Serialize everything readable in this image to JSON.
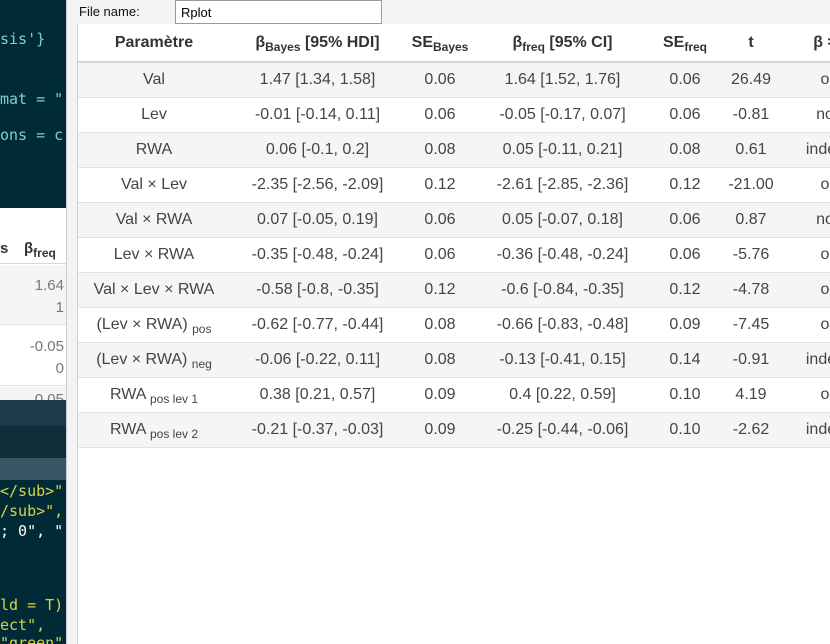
{
  "editor": {
    "code_lines": [
      {
        "text": "sis'}",
        "cls": "c-str"
      },
      {
        "text": "mat = \"",
        "cls": "c-str"
      },
      {
        "text": "ons = c",
        "cls": "c-str"
      },
      {
        "text": "</sub>\"",
        "cls": "c-yel"
      },
      {
        "text": "/sub>\",",
        "cls": "c-yel"
      },
      {
        "text": "; 0\", \"",
        "cls": "c-white"
      },
      {
        "text": "ld = T)",
        "cls": "c-yel"
      },
      {
        "text": "ect\",",
        "cls": "c-yel"
      },
      {
        "text": "\"green\"",
        "cls": "c-yel"
      }
    ],
    "table_headers": [
      "s",
      "β",
      "freq"
    ],
    "table_values": [
      [
        "1.64",
        "1"
      ],
      [
        "-0.05",
        "0"
      ],
      [
        "0.05"
      ]
    ]
  },
  "dialog": {
    "file_label": "File name:",
    "file_value": "Rplot"
  },
  "table": {
    "headers": [
      {
        "main": "Paramètre",
        "sub": "",
        "after": ""
      },
      {
        "main": "β",
        "sub": "Bayes",
        "after": " [95% HDI]"
      },
      {
        "main": "SE",
        "sub": "Bayes",
        "after": ""
      },
      {
        "main": "β",
        "sub": "freq",
        "after": " [95% CI]"
      },
      {
        "main": "SE",
        "sub": "freq",
        "after": ""
      },
      {
        "main": "t",
        "sub": "",
        "after": ""
      },
      {
        "main": "β =",
        "sub": "",
        "after": ""
      }
    ],
    "rows": [
      {
        "param": "Val",
        "param_sub": "",
        "bayes": "1.47 [1.34, 1.58]",
        "se_bayes": "0.06",
        "freq": "1.64 [1.52, 1.76]",
        "se_freq": "0.06",
        "t": "26.49",
        "last": "o"
      },
      {
        "param": "Lev",
        "param_sub": "",
        "bayes": "-0.01 [-0.14, 0.11]",
        "se_bayes": "0.06",
        "freq": "-0.05 [-0.17, 0.07]",
        "se_freq": "0.06",
        "t": "-0.81",
        "last": "no"
      },
      {
        "param": "RWA",
        "param_sub": "",
        "bayes": "0.06 [-0.1, 0.2]",
        "se_bayes": "0.08",
        "freq": "0.05 [-0.11, 0.21]",
        "se_freq": "0.08",
        "t": "0.61",
        "last": "indéc"
      },
      {
        "param": "Val × Lev",
        "param_sub": "",
        "bayes": "-2.35 [-2.56, -2.09]",
        "se_bayes": "0.12",
        "freq": "-2.61 [-2.85, -2.36]",
        "se_freq": "0.12",
        "t": "-21.00",
        "last": "o"
      },
      {
        "param": "Val × RWA",
        "param_sub": "",
        "bayes": "0.07 [-0.05, 0.19]",
        "se_bayes": "0.06",
        "freq": "0.05 [-0.07, 0.18]",
        "se_freq": "0.06",
        "t": "0.87",
        "last": "no"
      },
      {
        "param": "Lev × RWA",
        "param_sub": "",
        "bayes": "-0.35 [-0.48, -0.24]",
        "se_bayes": "0.06",
        "freq": "-0.36 [-0.48, -0.24]",
        "se_freq": "0.06",
        "t": "-5.76",
        "last": "o"
      },
      {
        "param": "Val × Lev × RWA",
        "param_sub": "",
        "bayes": "-0.58 [-0.8, -0.35]",
        "se_bayes": "0.12",
        "freq": "-0.6 [-0.84, -0.35]",
        "se_freq": "0.12",
        "t": "-4.78",
        "last": "o"
      },
      {
        "param": "(Lev × RWA)",
        "param_sub": "pos",
        "bayes": "-0.62 [-0.77, -0.44]",
        "se_bayes": "0.08",
        "freq": "-0.66 [-0.83, -0.48]",
        "se_freq": "0.09",
        "t": "-7.45",
        "last": "o"
      },
      {
        "param": "(Lev × RWA)",
        "param_sub": "neg",
        "bayes": "-0.06 [-0.22, 0.11]",
        "se_bayes": "0.08",
        "freq": "-0.13 [-0.41, 0.15]",
        "se_freq": "0.14",
        "t": "-0.91",
        "last": "indéc"
      },
      {
        "param": "RWA",
        "param_sub": "pos lev 1",
        "bayes": "0.38 [0.21, 0.57]",
        "se_bayes": "0.09",
        "freq": "0.4 [0.22, 0.59]",
        "se_freq": "0.10",
        "t": "4.19",
        "last": "o"
      },
      {
        "param": "RWA",
        "param_sub": "pos lev 2",
        "bayes": "-0.21 [-0.37, -0.03]",
        "se_bayes": "0.09",
        "freq": "-0.25 [-0.44, -0.06]",
        "se_freq": "0.10",
        "t": "-2.62",
        "last": "indéc"
      }
    ]
  }
}
